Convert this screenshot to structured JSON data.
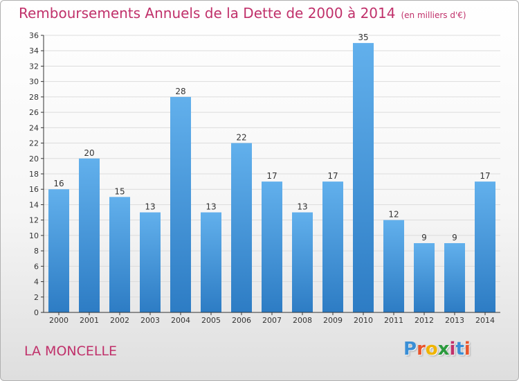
{
  "header": {
    "title": "Remboursements Annuels de la Dette de 2000 à 2014",
    "unit": "(en milliers d'€)"
  },
  "commune": "LA MONCELLE",
  "logo": {
    "text": "Proxiti",
    "letters": [
      {
        "char": "P",
        "color": "#3a8fd6"
      },
      {
        "char": "r",
        "color": "#e8542b"
      },
      {
        "char": "o",
        "color": "#f0b400"
      },
      {
        "char": "x",
        "color": "#2a9a3c"
      },
      {
        "char": "i",
        "color": "#c0306a"
      },
      {
        "char": "t",
        "color": "#3a8fd6"
      },
      {
        "char": "i",
        "color": "#e8542b"
      }
    ]
  },
  "colors": {
    "accent": "#c0306a",
    "bar_top": "#62b0ec",
    "bar_bottom": "#2d7cc4",
    "grid": "#dcdcdc",
    "axis": "#333333"
  },
  "chart_data": {
    "type": "bar",
    "categories": [
      "2000",
      "2001",
      "2002",
      "2003",
      "2004",
      "2005",
      "2006",
      "2007",
      "2008",
      "2009",
      "2010",
      "2011",
      "2012",
      "2013",
      "2014"
    ],
    "values": [
      16,
      20,
      15,
      13,
      28,
      13,
      22,
      17,
      13,
      17,
      35,
      12,
      9,
      9,
      17
    ],
    "ylim": [
      0,
      36
    ],
    "yticks": [
      0,
      2,
      4,
      6,
      8,
      10,
      12,
      14,
      16,
      18,
      20,
      22,
      24,
      26,
      28,
      30,
      32,
      34,
      36
    ],
    "grid": true,
    "data_labels": true
  }
}
